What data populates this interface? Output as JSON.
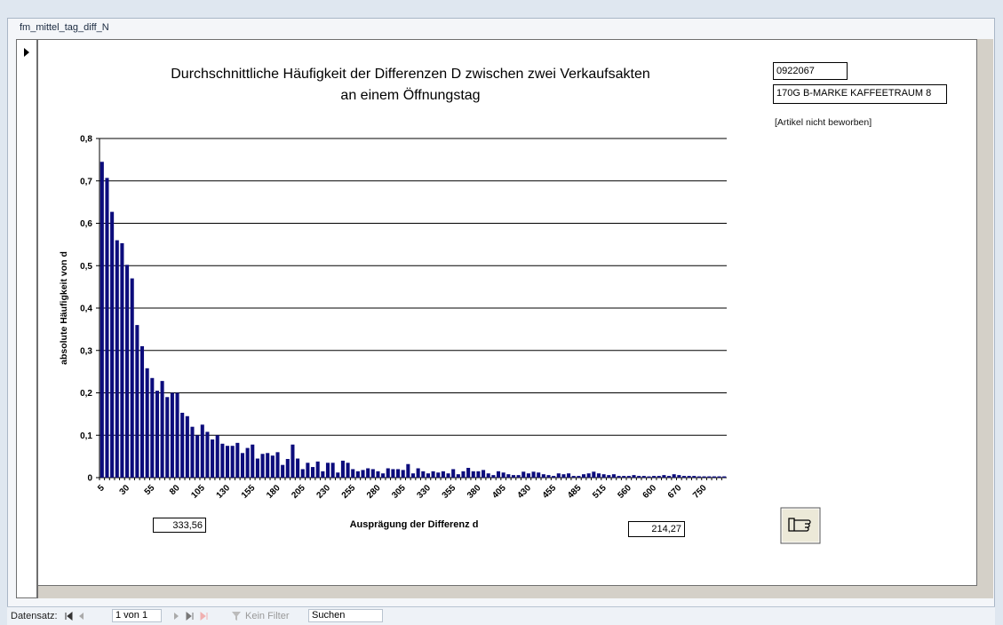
{
  "window": {
    "title": "fm_mittel_tag_diff_N"
  },
  "fields": {
    "article_number": "0922067",
    "article_name": "170G B-MARKE KAFFEETRAUM 8",
    "promotion_note": "[Artikel nicht beworben]",
    "left_value": "333,56",
    "right_value": "214,27"
  },
  "status_bar": {
    "record_label": "Datensatz:",
    "record_position": "1 von 1",
    "filter": "Kein Filter",
    "search": "Suchen"
  },
  "chart_data": {
    "type": "bar",
    "title": [
      "Durchschnittliche Häufigkeit der Differenzen D zwischen zwei Verkaufsakten",
      "an einem Öffnungstag"
    ],
    "x_label": "Ausprägung der Differenz d",
    "y_label": "absolute Häufigkeit von d",
    "color": "#0c0c7c",
    "grid": true,
    "ylim": [
      0,
      0.8
    ],
    "yticks": [
      0,
      {
        "value": 0.1,
        "label": "0,1"
      },
      {
        "value": 0.2,
        "label": "0,2"
      },
      {
        "value": 0.3,
        "label": "0,3"
      },
      {
        "value": 0.4,
        "label": "0,4"
      },
      {
        "value": 0.5,
        "label": "0,5"
      },
      {
        "value": 0.6,
        "label": "0,6"
      },
      {
        "value": 0.7,
        "label": "0,7"
      },
      {
        "value": 0.8,
        "label": "0,8"
      }
    ],
    "categories": [
      "5",
      null,
      null,
      null,
      null,
      "30",
      null,
      null,
      null,
      null,
      "55",
      null,
      null,
      null,
      null,
      "80",
      null,
      null,
      null,
      null,
      "105",
      null,
      null,
      null,
      null,
      "130",
      null,
      null,
      null,
      null,
      "155",
      null,
      null,
      null,
      null,
      "180",
      null,
      null,
      null,
      null,
      "205",
      null,
      null,
      null,
      null,
      "230",
      null,
      null,
      null,
      null,
      "255",
      null,
      null,
      null,
      null,
      "280",
      null,
      null,
      null,
      null,
      "305",
      null,
      null,
      null,
      null,
      "330",
      null,
      null,
      null,
      null,
      "355",
      null,
      null,
      null,
      null,
      "380",
      null,
      null,
      null,
      null,
      "405",
      null,
      null,
      null,
      null,
      "430",
      null,
      null,
      null,
      null,
      "455",
      null,
      null,
      null,
      null,
      "485",
      null,
      null,
      null,
      null,
      "515",
      null,
      null,
      null,
      null,
      "560",
      null,
      null,
      null,
      null,
      "600",
      null,
      null,
      null,
      null,
      "670",
      null,
      null,
      null,
      null,
      "750",
      null,
      null,
      null,
      null
    ],
    "values": [
      0.745,
      0.707,
      0.627,
      0.56,
      0.553,
      0.502,
      0.47,
      0.36,
      0.31,
      0.258,
      0.235,
      0.205,
      0.228,
      0.19,
      0.2,
      0.2,
      0.153,
      0.145,
      0.12,
      0.1,
      0.125,
      0.108,
      0.09,
      0.1,
      0.08,
      0.075,
      0.075,
      0.082,
      0.058,
      0.07,
      0.078,
      0.045,
      0.056,
      0.058,
      0.052,
      0.06,
      0.03,
      0.044,
      0.078,
      0.045,
      0.02,
      0.035,
      0.025,
      0.038,
      0.015,
      0.035,
      0.035,
      0.012,
      0.04,
      0.035,
      0.02,
      0.015,
      0.018,
      0.022,
      0.02,
      0.015,
      0.01,
      0.022,
      0.02,
      0.02,
      0.018,
      0.032,
      0.01,
      0.022,
      0.015,
      0.01,
      0.015,
      0.012,
      0.015,
      0.01,
      0.02,
      0.008,
      0.015,
      0.023,
      0.015,
      0.015,
      0.018,
      0.01,
      0.006,
      0.015,
      0.012,
      0.008,
      0.006,
      0.006,
      0.014,
      0.01,
      0.014,
      0.012,
      0.008,
      0.006,
      0.004,
      0.01,
      0.008,
      0.01,
      0.004,
      0.004,
      0.008,
      0.01,
      0.014,
      0.01,
      0.008,
      0.006,
      0.008,
      0.004,
      0.004,
      0.004,
      0.006,
      0.004,
      0.004,
      0.003,
      0.004,
      0.004,
      0.006,
      0.004,
      0.008,
      0.006,
      0.004,
      0.004,
      0.004,
      0.003,
      0.003,
      0.003,
      0.003,
      0.003,
      0.003
    ]
  }
}
